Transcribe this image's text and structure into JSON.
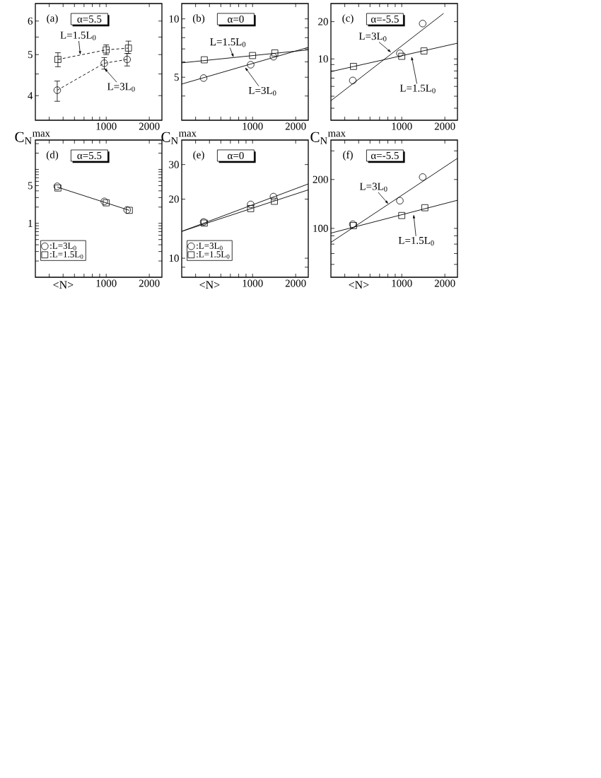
{
  "chart_data": [
    {
      "type": "line",
      "log": "xy",
      "xlim": [
        320,
        2450
      ],
      "ylim": [
        3.5,
        6.6
      ],
      "xticks": [
        {
          "value": 400,
          "label": null
        },
        {
          "value": 500,
          "label": null
        },
        {
          "value": 600,
          "label": null
        },
        {
          "value": 700,
          "label": null
        },
        {
          "value": 800,
          "label": null
        },
        {
          "value": 900,
          "label": null
        },
        1000,
        2000
      ],
      "yticks": [
        4,
        {
          "value": 4.5,
          "label": null
        },
        5,
        {
          "value": 5.5,
          "label": null
        },
        6
      ],
      "series": [
        {
          "color": "#000000",
          "marker": "square",
          "line_style": "dashed",
          "x": [
            460,
            1000,
            1430
          ],
          "values": [
            4.87,
            5.13,
            5.18
          ],
          "errors": [
            [
              4.68,
              5.05
            ],
            [
              5.0,
              5.27
            ],
            [
              5.03,
              5.38
            ]
          ]
        },
        {
          "color": "#000000",
          "marker": "circle",
          "line_style": "dashed",
          "x": [
            455,
            970,
            1400
          ],
          "values": [
            4.12,
            4.77,
            4.87
          ],
          "errors": [
            [
              3.88,
              4.33
            ],
            [
              4.62,
              4.92
            ],
            [
              4.7,
              5.03
            ]
          ]
        }
      ],
      "annotations": [
        "(a)",
        "α=5.5",
        {
          "text": "L=1.5L$_{0}$",
          "x": 660,
          "y": 4.99
        },
        {
          "text": "L=3L$_{0}$",
          "x": 970,
          "y": 4.77
        }
      ]
    },
    {
      "type": "scatter",
      "log": "xy",
      "xlim": [
        320,
        2450
      ],
      "ylim": [
        3,
        12
      ],
      "xticks": [
        {
          "value": 400,
          "label": null
        },
        {
          "value": 500,
          "label": null
        },
        {
          "value": 600,
          "label": null
        },
        {
          "value": 700,
          "label": null
        },
        {
          "value": 800,
          "label": null
        },
        {
          "value": 900,
          "label": null
        },
        1000,
        2000
      ],
      "yticks": [
        {
          "value": 4,
          "label": null
        },
        5,
        {
          "value": 6,
          "label": null
        },
        {
          "value": 7,
          "label": null
        },
        {
          "value": 8,
          "label": null
        },
        {
          "value": 9,
          "label": null
        },
        10
      ],
      "series": [
        {
          "color": "#000000",
          "marker": "square",
          "x": [
            460,
            1000,
            1430
          ],
          "values": [
            6.15,
            6.47,
            6.67
          ]
        },
        {
          "color": "#000000",
          "marker": "circle",
          "x": [
            455,
            970,
            1400
          ],
          "values": [
            4.95,
            5.8,
            6.38
          ]
        },
        {
          "type": "line",
          "color": "#000000",
          "marker": "none",
          "line_style": "solid",
          "x": [
            320,
            2450
          ],
          "values": [
            5.93,
            6.92
          ]
        },
        {
          "type": "line",
          "color": "#000000",
          "marker": "none",
          "line_style": "solid",
          "x": [
            320,
            2450
          ],
          "values": [
            4.61,
            7.13
          ]
        }
      ],
      "annotations": [
        "(b)",
        "α=0",
        {
          "text": "L=1.5L$_{0}$",
          "x": 738,
          "y": 6.32
        },
        {
          "text": "L=3L$_{0}$",
          "x": 884,
          "y": 5.73
        }
      ]
    },
    {
      "type": "scatter",
      "log": "xy",
      "xlim": [
        320,
        2450
      ],
      "ylim": [
        3.2,
        28
      ],
      "xticks": [
        {
          "value": 400,
          "label": null
        },
        {
          "value": 500,
          "label": null
        },
        {
          "value": 600,
          "label": null
        },
        {
          "value": 700,
          "label": null
        },
        {
          "value": 800,
          "label": null
        },
        {
          "value": 900,
          "label": null
        },
        1000,
        2000
      ],
      "yticks": [
        {
          "value": 4,
          "label": null
        },
        {
          "value": 5,
          "label": null
        },
        {
          "value": 6,
          "label": null
        },
        {
          "value": 7,
          "label": null
        },
        {
          "value": 8,
          "label": null
        },
        {
          "value": 9,
          "label": null
        },
        10,
        20
      ],
      "series": [
        {
          "color": "#000000",
          "marker": "square",
          "x": [
            460,
            1000,
            1430
          ],
          "values": [
            8.7,
            10.5,
            11.6
          ]
        },
        {
          "color": "#000000",
          "marker": "circle",
          "x": [
            455,
            970,
            1400
          ],
          "values": [
            6.7,
            11.1,
            19.3
          ]
        },
        {
          "type": "line",
          "color": "#000000",
          "marker": "none",
          "line_style": "solid",
          "x": [
            320,
            2450
          ],
          "values": [
            7.9,
            13.4
          ]
        },
        {
          "type": "line",
          "color": "#000000",
          "marker": "none",
          "line_style": "solid",
          "x": [
            320,
            1960
          ],
          "values": [
            4.6,
            23.3
          ]
        }
      ],
      "annotations": [
        "(c)",
        "α=-5.5",
        {
          "text": "L=3L$_{0}$",
          "x": 845,
          "y": 10.97
        },
        {
          "text": "L=1.5L$_{0}$",
          "x": 1170,
          "y": 11.06
        }
      ]
    },
    {
      "type": "scatter",
      "log": "xy",
      "xlim": [
        320,
        2450
      ],
      "ylim": [
        0.1,
        35
      ],
      "xlabel": "<N>",
      "ylabel": "C$_{N}$$^{max}$",
      "legend": "bottom left",
      "xticks": [
        {
          "value": 400,
          "label": null
        },
        {
          "value": 500,
          "label": null
        },
        {
          "value": 600,
          "label": null
        },
        {
          "value": 700,
          "label": null
        },
        {
          "value": 800,
          "label": null
        },
        {
          "value": 900,
          "label": null
        },
        1000,
        2000
      ],
      "yticks": [
        {
          "value": 0.2,
          "label": null
        },
        {
          "value": 0.3,
          "label": null
        },
        {
          "value": 0.4,
          "label": null
        },
        {
          "value": 0.5,
          "label": null
        },
        {
          "value": 0.6,
          "label": null
        },
        {
          "value": 0.7,
          "label": null
        },
        {
          "value": 0.8,
          "label": null
        },
        {
          "value": 0.9,
          "label": null
        },
        1,
        {
          "value": 2,
          "label": null
        },
        {
          "value": 3,
          "label": null
        },
        {
          "value": 4,
          "label": null
        },
        5,
        {
          "value": 6,
          "label": null
        },
        {
          "value": 7,
          "label": null
        },
        {
          "value": 8,
          "label": null
        },
        {
          "value": 9,
          "label": null
        },
        {
          "value": 10,
          "label": null
        },
        {
          "value": 20,
          "label": null
        },
        {
          "value": 30,
          "label": null
        }
      ],
      "series": [
        {
          "name": ":L=3L$_{0}$",
          "color": "#000000",
          "marker": "circle",
          "x": [
            455,
            970,
            1400
          ],
          "values": [
            4.85,
            2.55,
            1.77
          ]
        },
        {
          "name": ":L=1.5L$_{0}$",
          "color": "#000000",
          "marker": "square",
          "x": [
            460,
            1000,
            1450
          ],
          "values": [
            4.52,
            2.4,
            1.74
          ]
        },
        {
          "type": "line",
          "color": "#000000",
          "marker": "none",
          "line_style": "solid",
          "x": [
            455,
            1450
          ],
          "values": [
            4.7,
            1.74
          ]
        }
      ],
      "annotations": [
        "(d)",
        "α=5.5"
      ]
    },
    {
      "type": "scatter",
      "log": "xy",
      "xlim": [
        320,
        2450
      ],
      "ylim": [
        8,
        40
      ],
      "xlabel": "<N>",
      "ylabel": "C$_{N}$$^{max}$",
      "legend": "bottom left",
      "xticks": [
        {
          "value": 400,
          "label": null
        },
        {
          "value": 500,
          "label": null
        },
        {
          "value": 600,
          "label": null
        },
        {
          "value": 700,
          "label": null
        },
        {
          "value": 800,
          "label": null
        },
        {
          "value": 900,
          "label": null
        },
        1000,
        2000
      ],
      "yticks": [
        {
          "value": 9,
          "label": null
        },
        10,
        20,
        30
      ],
      "series": [
        {
          "name": ":L=3L$_{0}$",
          "color": "#000000",
          "marker": "circle",
          "x": [
            455,
            970,
            1400
          ],
          "values": [
            15.3,
            18.8,
            20.6
          ]
        },
        {
          "name": ":L=1.5L$_{0}$",
          "color": "#000000",
          "marker": "square",
          "x": [
            460,
            970,
            1420
          ],
          "values": [
            15.1,
            17.9,
            19.5
          ]
        },
        {
          "type": "line",
          "color": "#000000",
          "marker": "none",
          "line_style": "solid",
          "x": [
            320,
            2450
          ],
          "values": [
            13.7,
            23.9
          ]
        },
        {
          "type": "line",
          "color": "#000000",
          "marker": "none",
          "line_style": "solid",
          "x": [
            320,
            2450
          ],
          "values": [
            13.7,
            22.3
          ]
        }
      ],
      "annotations": [
        "(e)",
        "α=0"
      ]
    },
    {
      "type": "scatter",
      "log": "xy",
      "xlim": [
        320,
        2450
      ],
      "ylim": [
        50,
        350
      ],
      "xlabel": "<N>",
      "ylabel": "C$_{N}$$^{max}$",
      "xticks": [
        {
          "value": 400,
          "label": null
        },
        {
          "value": 500,
          "label": null
        },
        {
          "value": 600,
          "label": null
        },
        {
          "value": 700,
          "label": null
        },
        {
          "value": 800,
          "label": null
        },
        {
          "value": 900,
          "label": null
        },
        1000,
        2000
      ],
      "yticks": [
        {
          "value": 60,
          "label": null
        },
        {
          "value": 70,
          "label": null
        },
        {
          "value": 80,
          "label": null
        },
        {
          "value": 90,
          "label": null
        },
        100,
        200,
        {
          "value": 300,
          "label": null
        }
      ],
      "series": [
        {
          "color": "#000000",
          "marker": "circle",
          "x": [
            455,
            970,
            1400
          ],
          "values": [
            106,
            148,
            207
          ]
        },
        {
          "color": "#000000",
          "marker": "square",
          "x": [
            460,
            1000,
            1450
          ],
          "values": [
            104,
            120,
            134
          ]
        },
        {
          "type": "line",
          "color": "#000000",
          "marker": "none",
          "line_style": "solid",
          "x": [
            320,
            2450
          ],
          "values": [
            82,
            270
          ]
        },
        {
          "type": "line",
          "color": "#000000",
          "marker": "none",
          "line_style": "solid",
          "x": [
            320,
            2450
          ],
          "values": [
            93.5,
            149
          ]
        }
      ],
      "annotations": [
        "(f)",
        "α=-5.5",
        {
          "text": "L=3L$_{0}$",
          "x": 808,
          "y": 141
        },
        {
          "text": "L=1.5L$_{0}$",
          "x": 1210,
          "y": 127
        }
      ]
    }
  ]
}
